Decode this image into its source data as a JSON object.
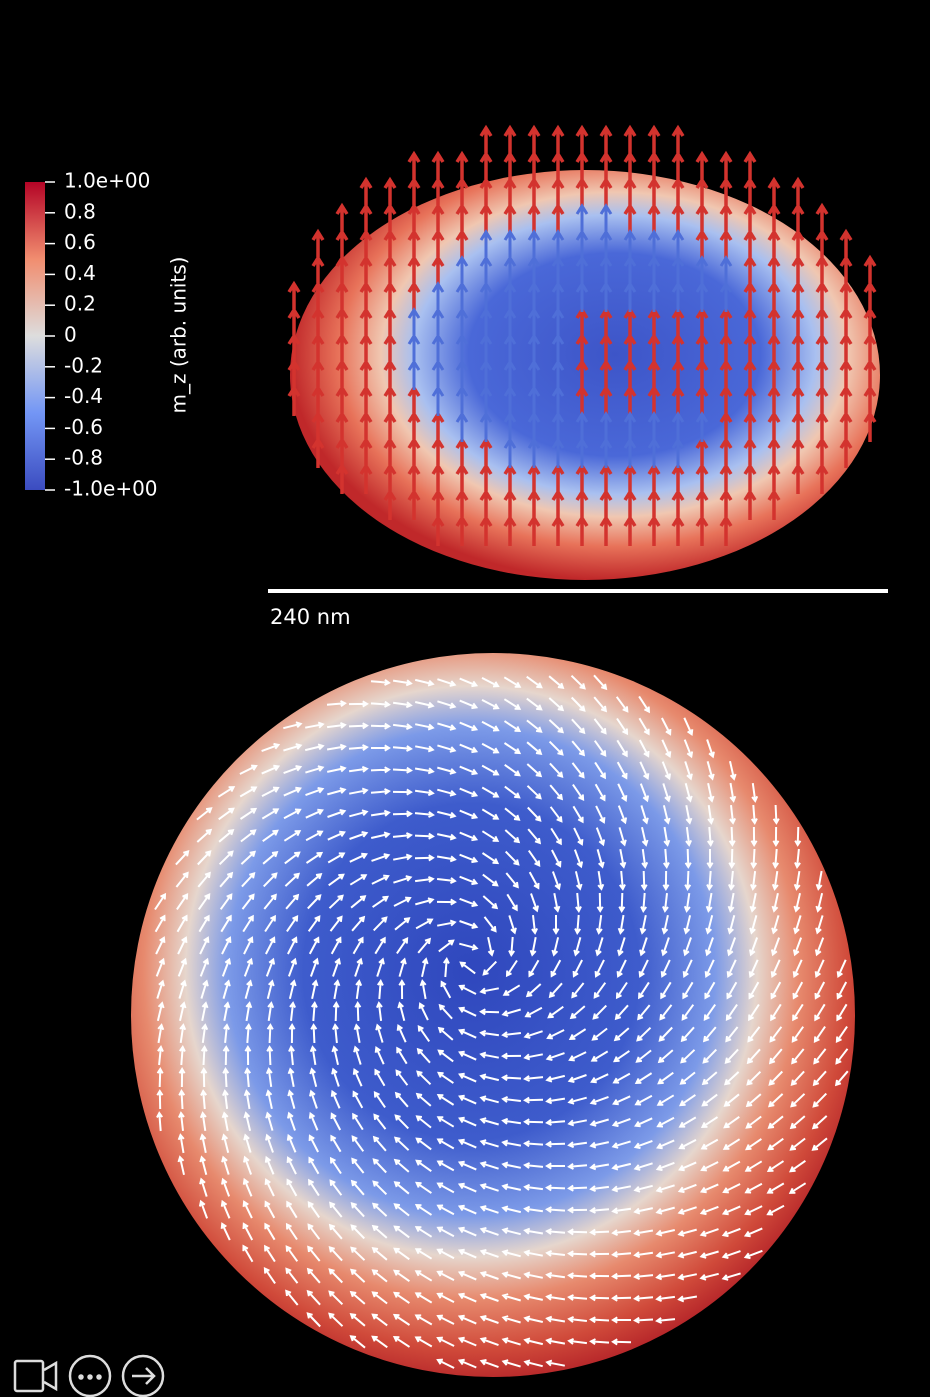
{
  "colorbar": {
    "title": "m_z (arb. units)",
    "clim": [
      -1,
      1
    ],
    "ticks": [
      {
        "value": 1,
        "label": "1.0e+00"
      },
      0.8,
      0.6,
      0.4,
      0.2,
      0,
      -0.2,
      -0.4,
      -0.6,
      -0.8,
      {
        "value": -1,
        "label": "-1.0e+00"
      }
    ]
  },
  "scale_bar": {
    "label": "240 nm"
  }
}
